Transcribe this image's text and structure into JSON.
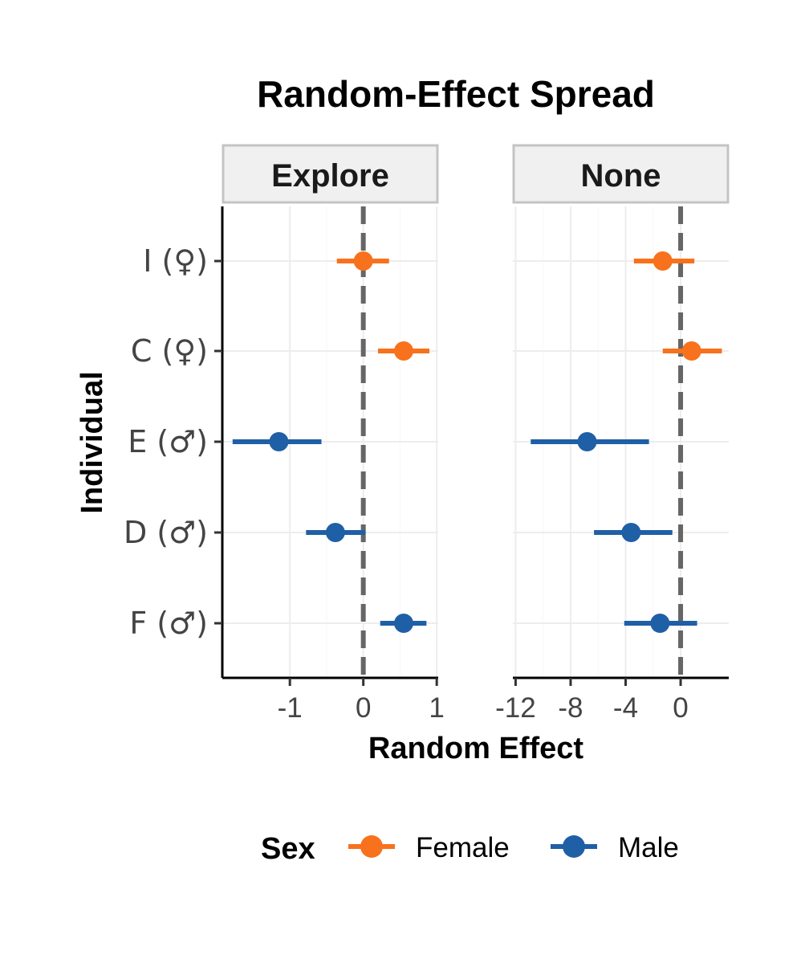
{
  "chart_data": {
    "type": "scatter",
    "title": "Random-Effect Spread",
    "xlabel": "Random Effect",
    "ylabel": "Individual",
    "categories": [
      "I (♀)",
      "C (♀)",
      "E (♂)",
      "D (♂)",
      "F (♂)"
    ],
    "colors": {
      "Female": "#f8711c",
      "Male": "#1f5fa6"
    },
    "legend": {
      "title": "Sex",
      "position": "bottom",
      "entries": [
        "Female",
        "Male"
      ]
    },
    "reference_line": 0,
    "panels": [
      {
        "name": "Explore",
        "xlim": [
          -1.92,
          1.02
        ],
        "ticks": [
          -1,
          0,
          1
        ],
        "tick_labels": [
          "-1",
          "0",
          "1"
        ],
        "points": [
          {
            "individual": "I (♀)",
            "sex": "Female",
            "estimate": 0.0,
            "lower": -0.36,
            "upper": 0.35
          },
          {
            "individual": "C (♀)",
            "sex": "Female",
            "estimate": 0.55,
            "lower": 0.2,
            "upper": 0.9
          },
          {
            "individual": "E (♂)",
            "sex": "Male",
            "estimate": -1.15,
            "lower": -1.78,
            "upper": -0.57
          },
          {
            "individual": "D (♂)",
            "sex": "Male",
            "estimate": -0.38,
            "lower": -0.78,
            "upper": 0.03
          },
          {
            "individual": "F (♂)",
            "sex": "Male",
            "estimate": 0.55,
            "lower": 0.23,
            "upper": 0.86
          }
        ]
      },
      {
        "name": "None",
        "xlim": [
          -12.2,
          3.5
        ],
        "ticks": [
          -12,
          -8,
          -4,
          0
        ],
        "tick_labels": [
          "-12",
          "-8",
          "-4",
          "0"
        ],
        "points": [
          {
            "individual": "I (♀)",
            "sex": "Female",
            "estimate": -1.3,
            "lower": -3.4,
            "upper": 1.0
          },
          {
            "individual": "C (♀)",
            "sex": "Female",
            "estimate": 0.8,
            "lower": -1.3,
            "upper": 3.0
          },
          {
            "individual": "E (♂)",
            "sex": "Male",
            "estimate": -6.8,
            "lower": -10.9,
            "upper": -2.3
          },
          {
            "individual": "D (♂)",
            "sex": "Male",
            "estimate": -3.6,
            "lower": -6.3,
            "upper": -0.6
          },
          {
            "individual": "F (♂)",
            "sex": "Male",
            "estimate": -1.5,
            "lower": -4.1,
            "upper": 1.2
          }
        ]
      }
    ]
  }
}
